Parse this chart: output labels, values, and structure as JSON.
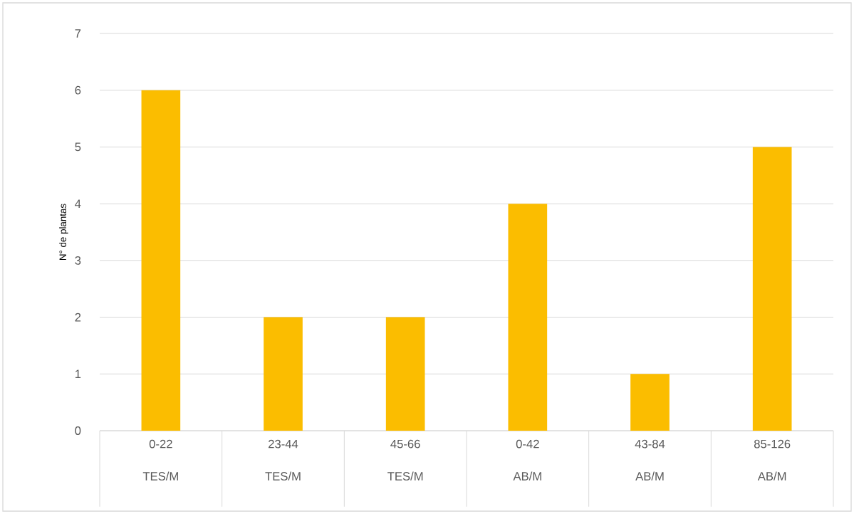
{
  "chart_data": {
    "type": "bar",
    "ylabel": "N° de plantas",
    "categories": [
      "0-22 TES/M",
      "23-44 TES/M",
      "45-66 TES/M",
      "0-42 AB/M",
      "43-84 AB/M",
      "85-126 AB/M"
    ],
    "values": [
      6,
      2,
      2,
      4,
      1,
      5
    ],
    "color": "#fbbd00",
    "ylim": [
      0,
      7
    ],
    "yticks": [
      0,
      1,
      2,
      3,
      4,
      5,
      6,
      7
    ],
    "grid": "y"
  }
}
